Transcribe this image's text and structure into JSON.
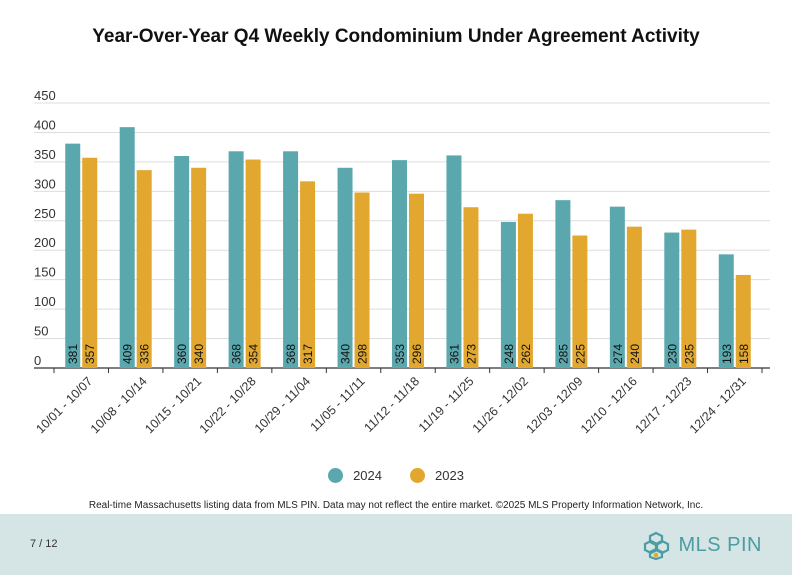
{
  "chart_data": {
    "type": "bar",
    "title": "Year-Over-Year Q4 Weekly Condominium Under Agreement Activity",
    "categories": [
      "10/01 - 10/07",
      "10/08 - 10/14",
      "10/15 - 10/21",
      "10/22 - 10/28",
      "10/29 - 11/04",
      "11/05 - 11/11",
      "11/12 - 11/18",
      "11/19 - 11/25",
      "11/26 - 12/02",
      "12/03 - 12/09",
      "12/10 - 12/16",
      "12/17 - 12/23",
      "12/24 - 12/31"
    ],
    "series": [
      {
        "name": "2024",
        "color": "#5aa8ae",
        "values": [
          381,
          409,
          360,
          368,
          368,
          340,
          353,
          361,
          248,
          285,
          274,
          230,
          193
        ]
      },
      {
        "name": "2023",
        "color": "#e2a72e",
        "values": [
          357,
          336,
          340,
          354,
          317,
          298,
          296,
          273,
          262,
          225,
          240,
          235,
          158
        ]
      }
    ],
    "yticks": [
      0,
      50,
      100,
      150,
      200,
      250,
      300,
      350,
      400,
      450
    ],
    "ylim": [
      0,
      450
    ],
    "grid": true,
    "legend": "bottom-center"
  },
  "footnote": "Real-time Massachusetts listing data from MLS PIN. Data may not reflect the entire market. ©2025 MLS Property Information Network, Inc.",
  "footer": {
    "page": "7 / 12",
    "brand": "MLS PIN"
  }
}
